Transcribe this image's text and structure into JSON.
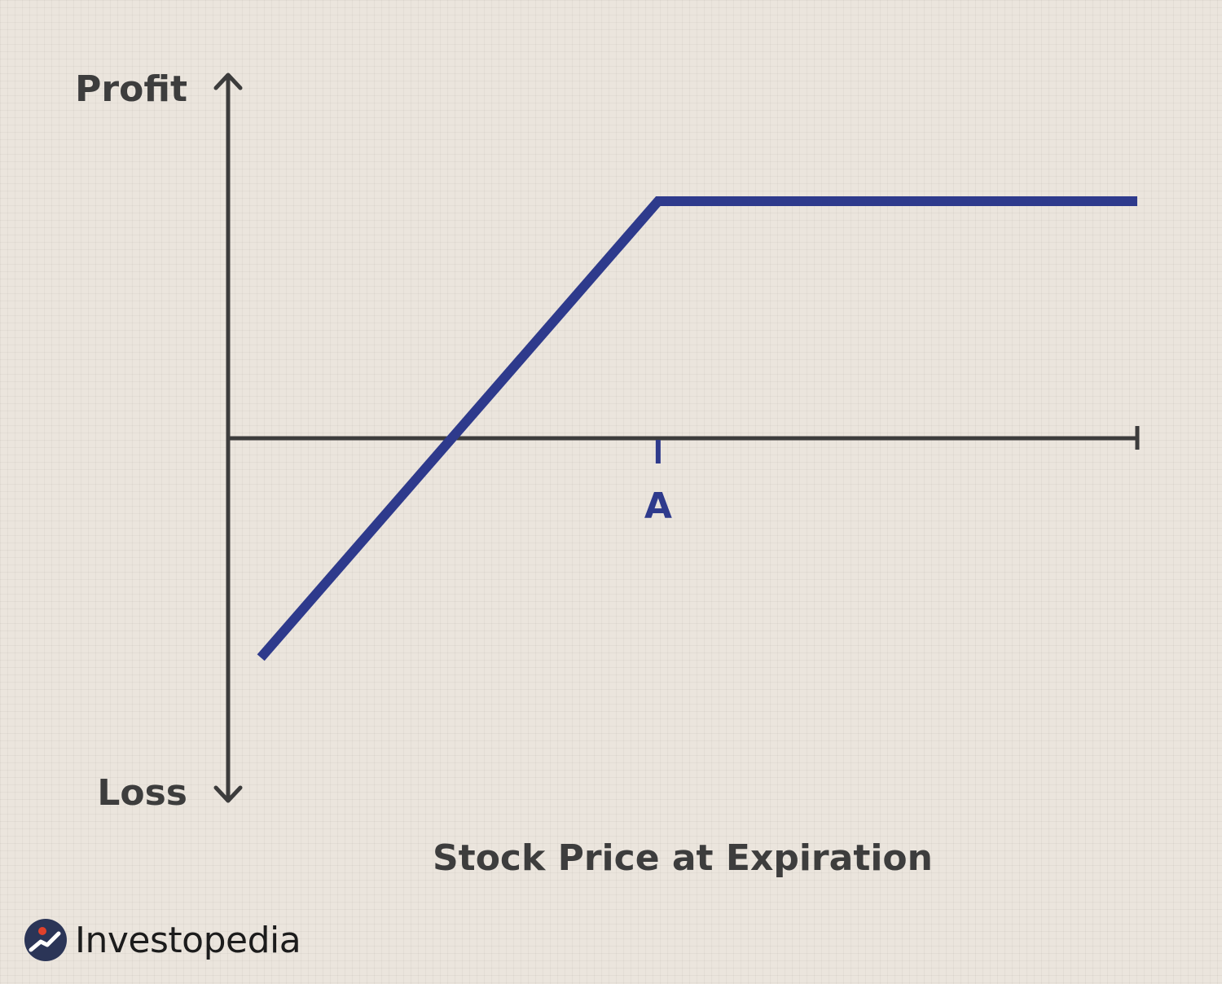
{
  "chart_data": {
    "type": "line",
    "title": "",
    "xlabel": "Stock Price at Expiration",
    "y_top_label": "Profit",
    "y_bottom_label": "Loss",
    "xlim": [
      0,
      100
    ],
    "ylim": [
      -100,
      100
    ],
    "x_ticks": [
      {
        "value": 47.3,
        "label": "A"
      }
    ],
    "series": [
      {
        "values_xy": [
          [
            3.6,
            -62
          ],
          [
            47.3,
            67
          ],
          [
            100,
            67
          ]
        ],
        "color": "#2e3a8c"
      }
    ],
    "grid": false,
    "legend": "none"
  },
  "colors": {
    "background": "#ebe5dd",
    "axis": "#3c3c3c",
    "line": "#2e3a8c",
    "text": "#3d3d3d",
    "logo_dot": "#e0412b"
  },
  "brand": {
    "name": "Investopedia",
    "logo_icon": "investopedia-logo-icon"
  }
}
